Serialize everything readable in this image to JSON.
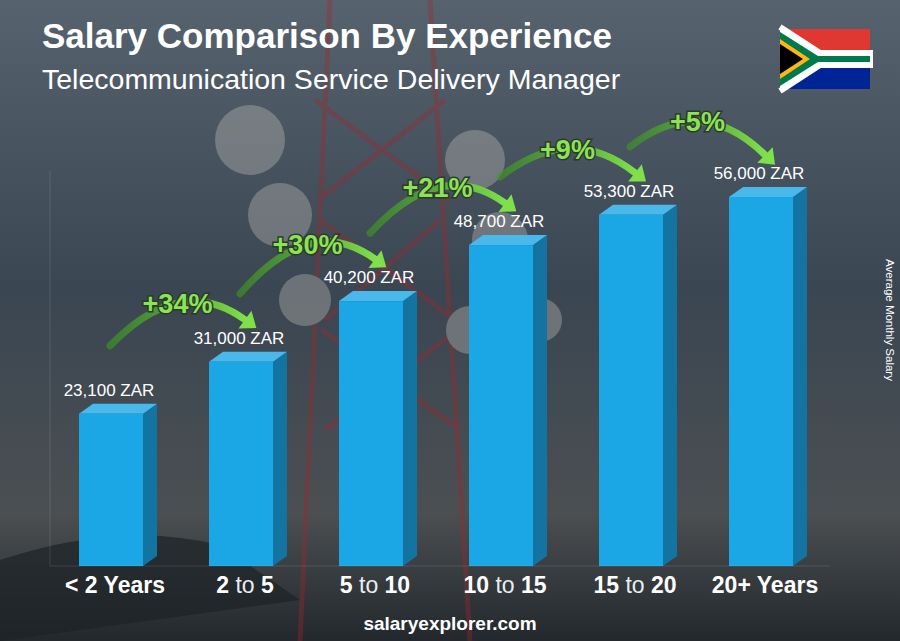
{
  "chart_data": {
    "type": "bar",
    "title": "Salary Comparison By Experience",
    "subtitle": "Telecommunication Service Delivery Manager",
    "y_label": "Average Monthly Salary",
    "source": "salaryexplorer.com",
    "categories": [
      "< 2 Years",
      "2 to 5",
      "5 to 10",
      "10 to 15",
      "15 to 20",
      "20+ Years"
    ],
    "values": [
      23100,
      31000,
      40200,
      48700,
      53300,
      56000
    ],
    "value_labels": [
      "23,100 ZAR",
      "31,000 ZAR",
      "40,200 ZAR",
      "48,700 ZAR",
      "53,300 ZAR",
      "56,000 ZAR"
    ],
    "annotations": [
      "+34%",
      "+30%",
      "+21%",
      "+9%",
      "+5%"
    ],
    "color": "#1ba6e6",
    "ylim": [
      0,
      60000
    ],
    "yticks": [],
    "grid": false,
    "data_labels": true,
    "tick_labels": "x"
  }
}
